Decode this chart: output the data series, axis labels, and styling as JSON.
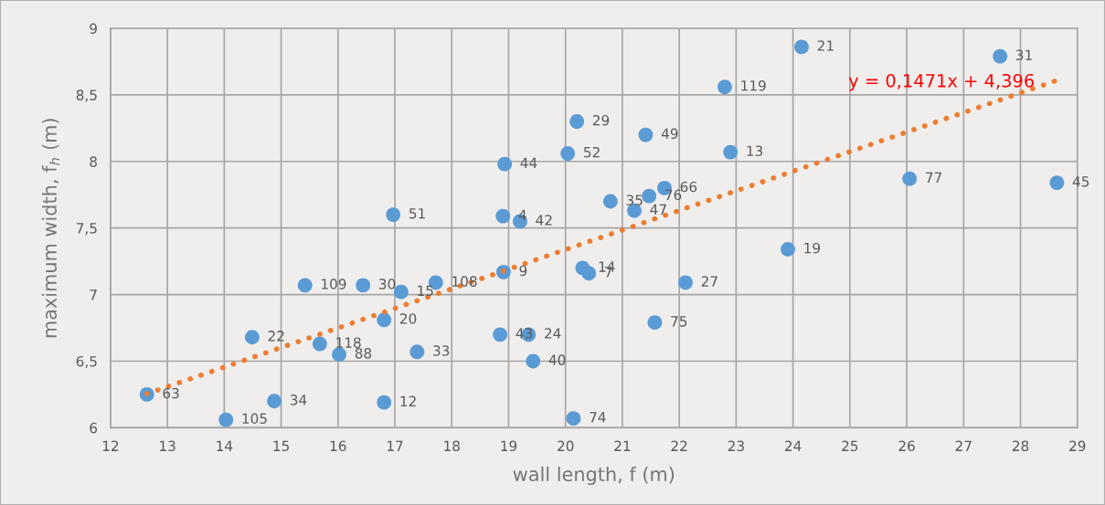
{
  "chart_data": {
    "type": "scatter",
    "xlabel": "wall length, f (m)",
    "ylabel": "maximum width, f$_{h}$ (m)",
    "xlim": [
      12,
      29
    ],
    "xticks": [
      12,
      13,
      14,
      15,
      16,
      17,
      18,
      19,
      20,
      21,
      22,
      23,
      24,
      25,
      26,
      27,
      28,
      29
    ],
    "ylim": [
      6,
      9
    ],
    "yticks": [
      6,
      {
        "value": 6.5,
        "label": "6,5"
      },
      7,
      {
        "value": 7.5,
        "label": "7,5"
      },
      8,
      {
        "value": 8.5,
        "label": "8,5"
      },
      9
    ],
    "grid": true,
    "legend": false,
    "series": [
      {
        "color": "#5b9bd5",
        "marker": "circle",
        "x": [
          12.64,
          14.03,
          14.88,
          14.49,
          15.42,
          15.68,
          16.02,
          16.44,
          16.81,
          16.81,
          16.97,
          17.11,
          17.39,
          17.72,
          18.85,
          18.91,
          18.9,
          18.93,
          19.2,
          19.35,
          19.43,
          20.04,
          20.14,
          20.2,
          20.3,
          20.41,
          20.79,
          21.21,
          21.41,
          21.47,
          21.74,
          21.57,
          22.11,
          22.8,
          22.9,
          23.91,
          24.15,
          26.05,
          27.64,
          28.64
        ],
        "values": [
          6.25,
          6.06,
          6.2,
          6.68,
          7.07,
          6.63,
          6.55,
          7.07,
          6.19,
          6.81,
          7.6,
          7.02,
          6.57,
          7.09,
          6.7,
          7.17,
          7.59,
          7.98,
          7.55,
          6.7,
          6.5,
          8.06,
          6.07,
          8.3,
          7.2,
          7.16,
          7.7,
          7.63,
          8.2,
          7.74,
          7.8,
          6.79,
          7.09,
          8.56,
          8.07,
          7.34,
          8.86,
          7.87,
          8.79,
          7.84
        ]
      },
      {
        "type": "line",
        "color": "#ed7d31",
        "line_style": "dotted",
        "marker": "none",
        "x": [
          12.64,
          28.64
        ],
        "values": [
          6.255,
          8.609
        ]
      }
    ],
    "annotations": [
      {
        "text": "63",
        "x": 12.64,
        "y": 6.25
      },
      {
        "text": "105",
        "x": 14.03,
        "y": 6.06
      },
      {
        "text": "34",
        "x": 14.88,
        "y": 6.2
      },
      {
        "text": "22",
        "x": 14.49,
        "y": 6.68
      },
      {
        "text": "109",
        "x": 15.42,
        "y": 7.07
      },
      {
        "text": "118",
        "x": 15.68,
        "y": 6.63
      },
      {
        "text": "88",
        "x": 16.02,
        "y": 6.55
      },
      {
        "text": "30",
        "x": 16.44,
        "y": 7.07
      },
      {
        "text": "12",
        "x": 16.81,
        "y": 6.19
      },
      {
        "text": "20",
        "x": 16.81,
        "y": 6.81
      },
      {
        "text": "51",
        "x": 16.97,
        "y": 7.6
      },
      {
        "text": "15",
        "x": 17.11,
        "y": 7.02
      },
      {
        "text": "33",
        "x": 17.39,
        "y": 6.57
      },
      {
        "text": "108",
        "x": 17.72,
        "y": 7.09
      },
      {
        "text": "43",
        "x": 18.85,
        "y": 6.7
      },
      {
        "text": "9",
        "x": 18.91,
        "y": 7.17
      },
      {
        "text": "4",
        "x": 18.9,
        "y": 7.59
      },
      {
        "text": "44",
        "x": 18.93,
        "y": 7.98
      },
      {
        "text": "42",
        "x": 19.2,
        "y": 7.55
      },
      {
        "text": "24",
        "x": 19.35,
        "y": 6.7
      },
      {
        "text": "40",
        "x": 19.43,
        "y": 6.5
      },
      {
        "text": "52",
        "x": 20.04,
        "y": 8.06
      },
      {
        "text": "74",
        "x": 20.14,
        "y": 6.07
      },
      {
        "text": "29",
        "x": 20.2,
        "y": 8.3
      },
      {
        "text": "14",
        "x": 20.3,
        "y": 7.2
      },
      {
        "text": "7",
        "x": 20.41,
        "y": 7.16
      },
      {
        "text": "35",
        "x": 20.79,
        "y": 7.7
      },
      {
        "text": "47",
        "x": 21.21,
        "y": 7.63
      },
      {
        "text": "49",
        "x": 21.41,
        "y": 8.2
      },
      {
        "text": "76",
        "x": 21.47,
        "y": 7.74
      },
      {
        "text": "66",
        "x": 21.74,
        "y": 7.8
      },
      {
        "text": "75",
        "x": 21.57,
        "y": 6.79
      },
      {
        "text": "27",
        "x": 22.11,
        "y": 7.09
      },
      {
        "text": "119",
        "x": 22.8,
        "y": 8.56
      },
      {
        "text": "13",
        "x": 22.9,
        "y": 8.07
      },
      {
        "text": "19",
        "x": 23.91,
        "y": 7.34
      },
      {
        "text": "21",
        "x": 24.15,
        "y": 8.86
      },
      {
        "text": "77",
        "x": 26.05,
        "y": 7.87
      },
      {
        "text": "31",
        "x": 27.64,
        "y": 8.79
      },
      {
        "text": "45",
        "x": 28.64,
        "y": 7.84
      },
      "y = 0,1471x + 4,396"
    ]
  }
}
